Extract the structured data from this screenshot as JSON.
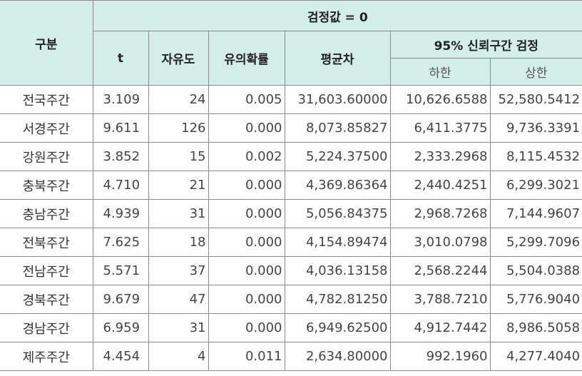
{
  "header": {
    "category": "구분",
    "test_value": "검정값 = 0",
    "t": "t",
    "df": "자유도",
    "significance": "유의확률",
    "mean_diff": "평균차",
    "ci": "95% 신뢰구간 검정",
    "lower": "하한",
    "upper": "상한"
  },
  "rows": [
    {
      "region": "전국주간",
      "t": "3.109",
      "df": "24",
      "sig": "0.005",
      "mean": "31,603.60000",
      "lower": "10,626.6588",
      "upper": "52,580.5412"
    },
    {
      "region": "서경주간",
      "t": "9.611",
      "df": "126",
      "sig": "0.000",
      "mean": "8,073.85827",
      "lower": "6,411.3775",
      "upper": "9,736.3391"
    },
    {
      "region": "강원주간",
      "t": "3.852",
      "df": "15",
      "sig": "0.002",
      "mean": "5,224.37500",
      "lower": "2,333.2968",
      "upper": "8,115.4532"
    },
    {
      "region": "충북주간",
      "t": "4.710",
      "df": "21",
      "sig": "0.000",
      "mean": "4,369.86364",
      "lower": "2,440.4251",
      "upper": "6,299.3021"
    },
    {
      "region": "충남주간",
      "t": "4.939",
      "df": "31",
      "sig": "0.000",
      "mean": "5,056.84375",
      "lower": "2,968.7268",
      "upper": "7,144.9607"
    },
    {
      "region": "전북주간",
      "t": "7.625",
      "df": "18",
      "sig": "0.000",
      "mean": "4,154.89474",
      "lower": "3,010.0798",
      "upper": "5,299.7096"
    },
    {
      "region": "전남주간",
      "t": "5.571",
      "df": "37",
      "sig": "0.000",
      "mean": "4,036.13158",
      "lower": "2,568.2244",
      "upper": "5,504.0388"
    },
    {
      "region": "경북주간",
      "t": "9.679",
      "df": "47",
      "sig": "0.000",
      "mean": "4,782.81250",
      "lower": "3,788.7210",
      "upper": "5,776.9040"
    },
    {
      "region": "경남주간",
      "t": "6.959",
      "df": "31",
      "sig": "0.000",
      "mean": "6,949.62500",
      "lower": "4,912.7442",
      "upper": "8,986.5058"
    },
    {
      "region": "제주주간",
      "t": "4.454",
      "df": "4",
      "sig": "0.011",
      "mean": "2,634.80000",
      "lower": "992.1960",
      "upper": "4,277.4040"
    }
  ]
}
